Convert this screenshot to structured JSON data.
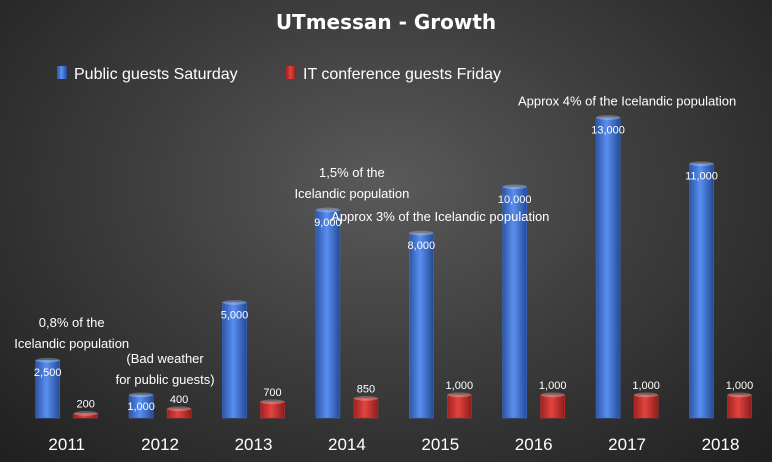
{
  "chart_data": {
    "type": "bar",
    "title": "UTmessan - Growth",
    "xlabel": "",
    "ylabel": "",
    "categories": [
      "2011",
      "2012",
      "2013",
      "2014",
      "2015",
      "2016",
      "2017",
      "2018"
    ],
    "series": [
      {
        "name": "Public guests Saturday",
        "color": "#3a6fd0",
        "values": [
          2500,
          1000,
          5000,
          9000,
          8000,
          10000,
          13000,
          11000
        ],
        "labels": [
          "2,500",
          "1,000",
          "5,000",
          "9,000",
          "8,000",
          "10,000",
          "13,000",
          "11,000"
        ]
      },
      {
        "name": "IT conference guests Friday",
        "color": "#c8302e",
        "values": [
          200,
          400,
          700,
          850,
          1000,
          1000,
          1000,
          1000
        ],
        "labels": [
          "200",
          "400",
          "700",
          "850",
          "1,000",
          "1,000",
          "1,000",
          "1,000"
        ]
      }
    ],
    "ylim": [
      0,
      13800
    ],
    "grid": false,
    "legend_position": "top-left",
    "annotations": [
      {
        "category": "2011",
        "lines": [
          "0,8% of  the",
          "Icelandic population"
        ]
      },
      {
        "category": "2012",
        "lines": [
          "(Bad weather",
          "for public guests)"
        ]
      },
      {
        "category": "2014",
        "lines": [
          "1,5% of  the",
          "Icelandic population"
        ]
      },
      {
        "category": "2015",
        "lines": [
          "Approx 3% of  the Icelandic population"
        ]
      },
      {
        "category": "2017",
        "lines": [
          "Approx 4% of  the Icelandic population"
        ]
      }
    ]
  }
}
